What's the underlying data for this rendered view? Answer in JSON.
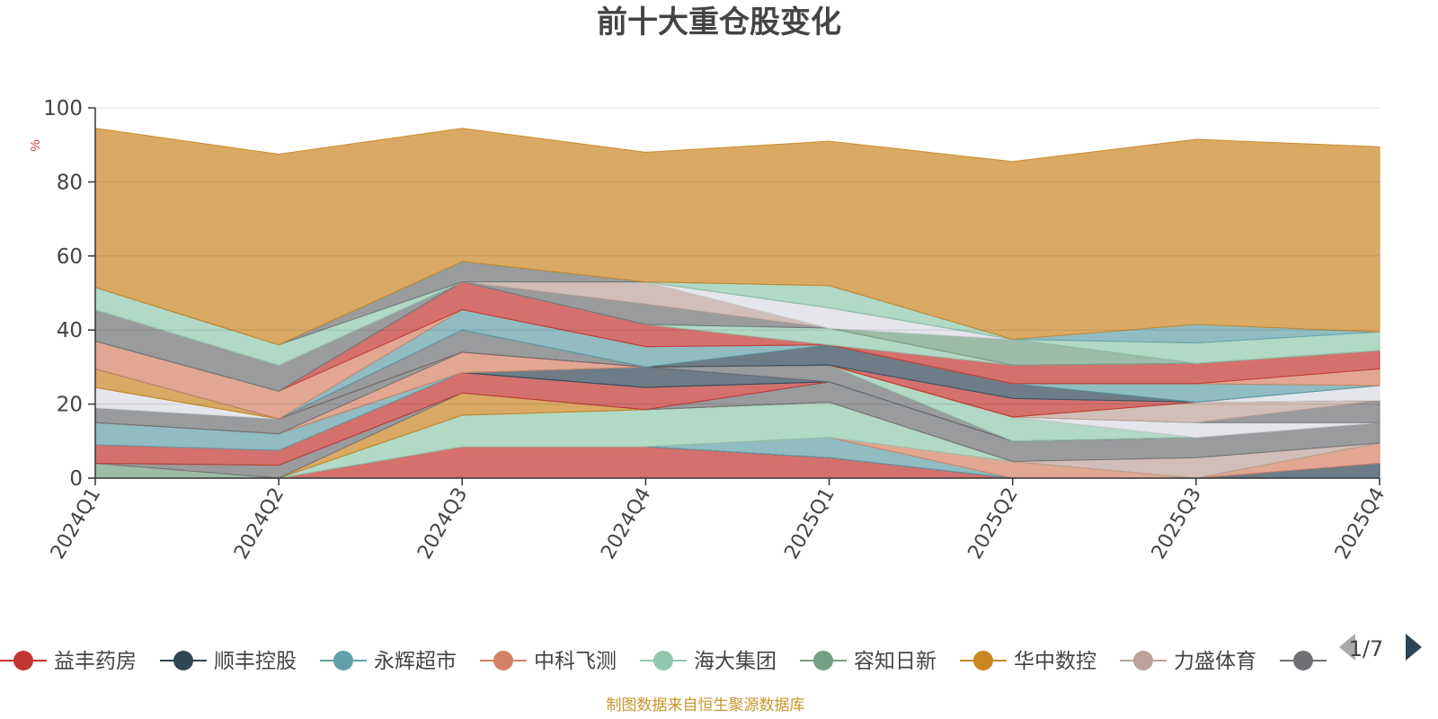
{
  "chart_data": {
    "type": "area",
    "title": "前十大重仓股变化",
    "ylabel": "%",
    "ylim": [
      0,
      100
    ],
    "yticks": [
      0,
      20,
      40,
      60,
      80,
      100
    ],
    "categories": [
      "2024Q1",
      "2024Q2",
      "2024Q3",
      "2024Q4",
      "2025Q1",
      "2025Q2",
      "2025Q3",
      "2025Q4"
    ],
    "grid": true,
    "legend_position": "bottom",
    "legend_page": "1/7",
    "source_note": "制图数据来自恒生聚源数据库",
    "colors": {
      "title": "#444444",
      "axis_label": "#e03c31",
      "source": "#c8962c",
      "pager_inactive": "#aaaaaa",
      "pager_active": "#2f4554",
      "background_band": "#d8a862"
    },
    "series": [
      {
        "name": "益丰药房",
        "color": "#c23531",
        "values": [
          0,
          0,
          8.5,
          8.5,
          5.5,
          0,
          0,
          0
        ]
      },
      {
        "name": "顺丰控股",
        "color": "#2f4554",
        "values": [
          0,
          0,
          0,
          0,
          0,
          0,
          0,
          4
        ]
      },
      {
        "name": "永辉超市",
        "color": "#61a0a8",
        "values": [
          0,
          0,
          0,
          0,
          5.5,
          0,
          0,
          0
        ]
      },
      {
        "name": "中科飞测",
        "color": "#d48265",
        "values": [
          0,
          0,
          0,
          0,
          0,
          4.5,
          0,
          5.5
        ]
      },
      {
        "name": "海大集团",
        "color": "#91c7ae",
        "values": [
          0,
          0,
          8.5,
          10,
          9.5,
          0,
          0,
          0
        ]
      },
      {
        "name": "容知日新",
        "color": "#749f83",
        "values": [
          4,
          0,
          0,
          0,
          0,
          0,
          0,
          0
        ]
      },
      {
        "name": "华中数控",
        "color": "#ca8622",
        "values": [
          0,
          0,
          6,
          0,
          0,
          0,
          0,
          0
        ]
      },
      {
        "name": "力盛体育",
        "color": "#bda29a",
        "values": [
          0,
          0,
          0,
          0,
          0,
          0,
          5.5,
          0
        ]
      },
      {
        "name": "",
        "color": "#6e7074",
        "values": [
          0,
          3.5,
          0,
          0,
          5.5,
          5.5,
          5.5,
          5.5
        ]
      },
      {
        "name": "",
        "color": "#c23531",
        "values": [
          5,
          4,
          5.5,
          6,
          0,
          0,
          0,
          0
        ]
      },
      {
        "name": "",
        "color": "#61a0a8",
        "values": [
          6,
          4.5,
          0,
          0,
          0,
          0,
          0,
          0
        ]
      },
      {
        "name": "",
        "color": "#2f4554",
        "values": [
          0,
          0,
          0,
          5.5,
          0,
          0,
          0,
          0
        ]
      },
      {
        "name": "",
        "color": "#6e7074",
        "values": [
          0,
          0,
          0,
          0,
          4.5,
          0,
          0,
          0
        ]
      },
      {
        "name": "",
        "color": "#91c7ae",
        "values": [
          0,
          0,
          0,
          0,
          0,
          6.5,
          0,
          0
        ]
      },
      {
        "name": "",
        "color": "#d48265",
        "values": [
          0,
          0,
          5.5,
          0,
          0,
          0,
          0,
          0
        ]
      },
      {
        "name": "",
        "color": "#6e7074",
        "values": [
          4,
          4,
          0,
          0,
          0,
          0,
          0,
          0
        ]
      },
      {
        "name": "",
        "color": "#d8dbe2",
        "values": [
          5.5,
          0,
          0,
          0,
          0,
          0,
          4,
          0
        ]
      },
      {
        "name": "",
        "color": "#6e7074",
        "values": [
          0,
          0,
          0,
          0,
          0,
          0,
          0,
          6
        ]
      },
      {
        "name": "",
        "color": "#bda29a",
        "values": [
          0,
          0,
          0,
          0,
          0,
          0,
          5.5,
          0
        ]
      },
      {
        "name": "",
        "color": "#ca8622",
        "values": [
          5,
          0,
          0,
          0,
          0,
          0,
          0,
          0
        ]
      },
      {
        "name": "",
        "color": "#c23531",
        "values": [
          0,
          0,
          0,
          0,
          0,
          5,
          0,
          0
        ]
      },
      {
        "name": "",
        "color": "#6e7074",
        "values": [
          0,
          0,
          6,
          0,
          0,
          0,
          0,
          0
        ]
      },
      {
        "name": "",
        "color": "#d8dbe2",
        "values": [
          0,
          0,
          0,
          0,
          0,
          0,
          0,
          4
        ]
      },
      {
        "name": "",
        "color": "#2f4554",
        "values": [
          0,
          0,
          0,
          0,
          5.5,
          4,
          0,
          0
        ]
      },
      {
        "name": "",
        "color": "#61a0a8",
        "values": [
          0,
          0,
          5.5,
          5.5,
          0,
          0,
          5,
          0
        ]
      },
      {
        "name": "",
        "color": "#d48265",
        "values": [
          7.5,
          7.5,
          0,
          0,
          0,
          0,
          0,
          4.5
        ]
      },
      {
        "name": "",
        "color": "#c23531",
        "values": [
          0,
          0,
          7.5,
          6,
          0,
          5,
          5.5,
          5
        ]
      },
      {
        "name": "",
        "color": "#91c7ae",
        "values": [
          0,
          0,
          0,
          0,
          4.5,
          0,
          0,
          0
        ]
      },
      {
        "name": "",
        "color": "#6e7074",
        "values": [
          8.5,
          7,
          0,
          5.5,
          0,
          0,
          0,
          0
        ]
      },
      {
        "name": "",
        "color": "#bda29a",
        "values": [
          0,
          0,
          0,
          6,
          0,
          0,
          0,
          0
        ]
      },
      {
        "name": "",
        "color": "#749f83",
        "values": [
          0,
          0,
          0,
          0,
          0,
          7,
          0,
          0
        ]
      },
      {
        "name": "",
        "color": "#d8dbe2",
        "values": [
          0,
          0,
          0,
          0,
          5.5,
          0,
          0,
          0
        ]
      },
      {
        "name": "",
        "color": "#91c7ae",
        "values": [
          6,
          5.5,
          0,
          0,
          0,
          0,
          0,
          0
        ]
      },
      {
        "name": "",
        "color": "#6e7074",
        "values": [
          0,
          0,
          5.5,
          0,
          0,
          0,
          0,
          0
        ]
      },
      {
        "name": "",
        "color": "#91c7ae",
        "values": [
          0,
          0,
          0,
          0,
          6,
          0,
          5.5,
          5
        ]
      },
      {
        "name": "",
        "color": "#61a0a8",
        "values": [
          0,
          0,
          0,
          0,
          0,
          0,
          5,
          0
        ]
      },
      {
        "name": "",
        "color": "#ca8622",
        "values": [
          43,
          51.5,
          36,
          35,
          39,
          48,
          50,
          50
        ]
      }
    ]
  }
}
